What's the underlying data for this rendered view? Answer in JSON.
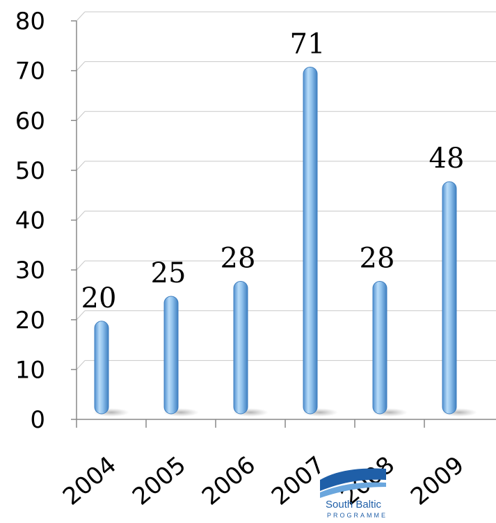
{
  "chart_data": {
    "type": "bar",
    "title": "",
    "xlabel": "",
    "ylabel": "",
    "categories": [
      "2004",
      "2005",
      "2006",
      "2007",
      "2008",
      "2009"
    ],
    "values": [
      20,
      25,
      28,
      71,
      28,
      48
    ],
    "data_labels": [
      "20",
      "25",
      "28",
      "71",
      "28",
      "48"
    ],
    "ylim": [
      0,
      80
    ],
    "yticks": [
      "0",
      "10",
      "20",
      "30",
      "40",
      "50",
      "60",
      "70",
      "80"
    ],
    "grid": true,
    "legend": "none",
    "bar_color": "#8fc1ec"
  },
  "logo": {
    "text_main": "South Baltic",
    "text_sub": "PROGRAMME",
    "colors": {
      "blue": "#1f5fa8",
      "star": "#f4d000"
    }
  }
}
